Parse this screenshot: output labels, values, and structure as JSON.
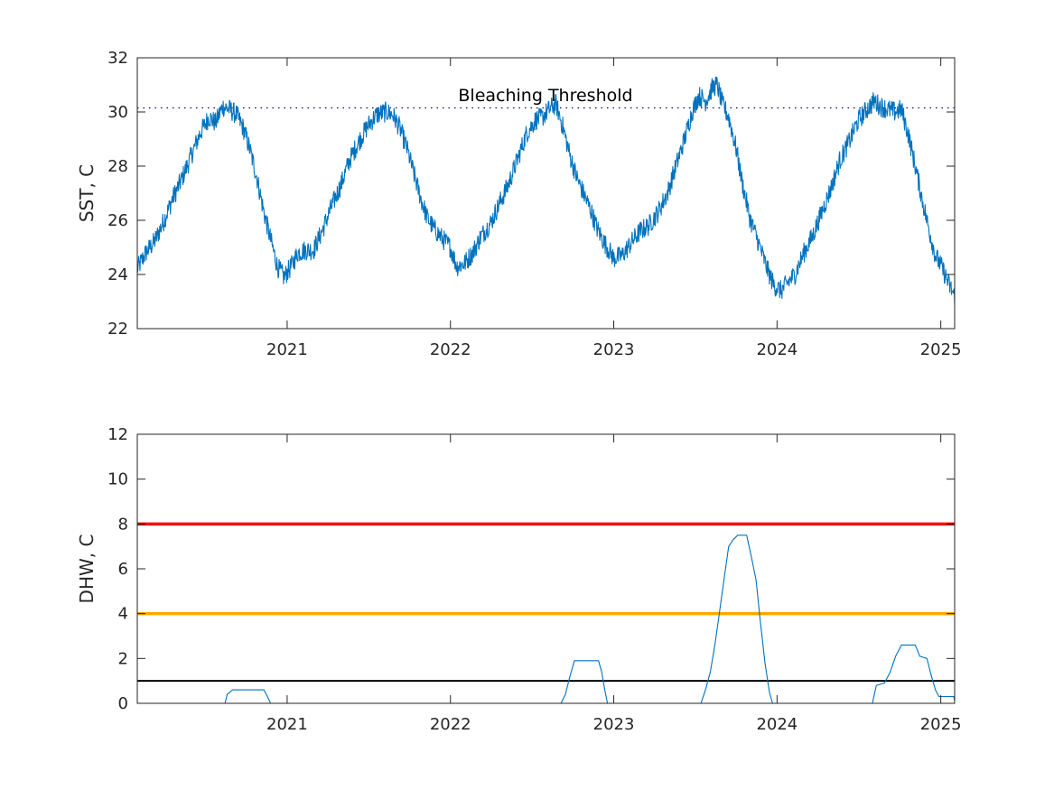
{
  "chart_data": [
    {
      "type": "line",
      "title": "",
      "xlabel": "",
      "ylabel": "SST, C",
      "xlim": [
        "2020-02-01",
        "2025-02-01"
      ],
      "ylim": [
        22,
        32
      ],
      "x_ticks": [
        "2021",
        "2022",
        "2023",
        "2024",
        "2025"
      ],
      "y_ticks": [
        "22",
        "24",
        "26",
        "28",
        "30",
        "32"
      ],
      "grid": false,
      "series": [
        {
          "color": "#0072bd",
          "points": [
            [
              "2020-02-01",
              24.2
            ],
            [
              "2020-02-20",
              24.8
            ],
            [
              "2020-03-10",
              25.2
            ],
            [
              "2020-04-01",
              26.0
            ],
            [
              "2020-04-20",
              26.8
            ],
            [
              "2020-05-10",
              27.5
            ],
            [
              "2020-06-01",
              28.4
            ],
            [
              "2020-06-20",
              29.2
            ],
            [
              "2020-07-10",
              29.8
            ],
            [
              "2020-07-25",
              29.6
            ],
            [
              "2020-08-10",
              30.2
            ],
            [
              "2020-08-25",
              30.1
            ],
            [
              "2020-09-10",
              29.9
            ],
            [
              "2020-09-25",
              29.4
            ],
            [
              "2020-10-10",
              28.6
            ],
            [
              "2020-10-25",
              27.6
            ],
            [
              "2020-11-10",
              26.3
            ],
            [
              "2020-11-25",
              25.3
            ],
            [
              "2020-12-10",
              24.3
            ],
            [
              "2020-12-25",
              23.9
            ],
            [
              "2021-01-10",
              24.3
            ],
            [
              "2021-01-25",
              24.8
            ],
            [
              "2021-02-10",
              24.9
            ],
            [
              "2021-03-01",
              24.9
            ],
            [
              "2021-03-20",
              25.6
            ],
            [
              "2021-04-10",
              26.5
            ],
            [
              "2021-05-01",
              27.3
            ],
            [
              "2021-05-20",
              28.2
            ],
            [
              "2021-06-10",
              28.9
            ],
            [
              "2021-07-01",
              29.5
            ],
            [
              "2021-07-20",
              29.9
            ],
            [
              "2021-08-10",
              30.0
            ],
            [
              "2021-08-25",
              29.9
            ],
            [
              "2021-09-10",
              29.4
            ],
            [
              "2021-09-25",
              28.7
            ],
            [
              "2021-10-10",
              27.8
            ],
            [
              "2021-10-25",
              26.9
            ],
            [
              "2021-11-10",
              26.1
            ],
            [
              "2021-11-25",
              25.7
            ],
            [
              "2021-12-10",
              25.4
            ],
            [
              "2022-01-01",
              25.0
            ],
            [
              "2022-01-15",
              24.3
            ],
            [
              "2022-02-01",
              24.4
            ],
            [
              "2022-02-20",
              24.8
            ],
            [
              "2022-03-10",
              25.4
            ],
            [
              "2022-04-01",
              25.9
            ],
            [
              "2022-04-20",
              26.6
            ],
            [
              "2022-05-10",
              27.3
            ],
            [
              "2022-06-01",
              28.3
            ],
            [
              "2022-06-20",
              29.2
            ],
            [
              "2022-07-10",
              29.7
            ],
            [
              "2022-07-25",
              29.8
            ],
            [
              "2022-08-10",
              30.1
            ],
            [
              "2022-08-25",
              30.3
            ],
            [
              "2022-09-10",
              29.4
            ],
            [
              "2022-09-25",
              28.4
            ],
            [
              "2022-10-10",
              27.6
            ],
            [
              "2022-10-25",
              27.0
            ],
            [
              "2022-11-10",
              26.4
            ],
            [
              "2022-11-25",
              25.7
            ],
            [
              "2022-12-10",
              25.2
            ],
            [
              "2023-01-01",
              24.6
            ],
            [
              "2023-01-20",
              24.7
            ],
            [
              "2023-02-10",
              25.2
            ],
            [
              "2023-03-01",
              25.6
            ],
            [
              "2023-03-20",
              25.8
            ],
            [
              "2023-04-10",
              26.3
            ],
            [
              "2023-05-01",
              27.0
            ],
            [
              "2023-05-20",
              28.0
            ],
            [
              "2023-06-10",
              29.1
            ],
            [
              "2023-06-25",
              30.0
            ],
            [
              "2023-07-10",
              30.6
            ],
            [
              "2023-07-25",
              30.4
            ],
            [
              "2023-08-10",
              30.9
            ],
            [
              "2023-08-20",
              31.0
            ],
            [
              "2023-09-01",
              30.3
            ],
            [
              "2023-09-15",
              29.8
            ],
            [
              "2023-10-01",
              28.7
            ],
            [
              "2023-10-15",
              27.4
            ],
            [
              "2023-11-01",
              26.1
            ],
            [
              "2023-11-20",
              25.2
            ],
            [
              "2023-12-10",
              24.2
            ],
            [
              "2023-12-25",
              23.6
            ],
            [
              "2024-01-10",
              23.4
            ],
            [
              "2024-01-25",
              23.7
            ],
            [
              "2024-02-10",
              24.0
            ],
            [
              "2024-03-01",
              24.8
            ],
            [
              "2024-03-20",
              25.4
            ],
            [
              "2024-04-10",
              26.3
            ],
            [
              "2024-05-01",
              27.2
            ],
            [
              "2024-05-20",
              28.2
            ],
            [
              "2024-06-10",
              28.9
            ],
            [
              "2024-07-01",
              29.7
            ],
            [
              "2024-07-20",
              30.1
            ],
            [
              "2024-08-05",
              30.4
            ],
            [
              "2024-08-20",
              30.2
            ],
            [
              "2024-09-05",
              30.1
            ],
            [
              "2024-09-20",
              30.0
            ],
            [
              "2024-10-05",
              30.1
            ],
            [
              "2024-10-20",
              29.2
            ],
            [
              "2024-11-05",
              28.0
            ],
            [
              "2024-11-20",
              26.8
            ],
            [
              "2024-12-05",
              25.7
            ],
            [
              "2024-12-20",
              24.7
            ],
            [
              "2025-01-05",
              24.2
            ],
            [
              "2025-01-20",
              23.6
            ],
            [
              "2025-02-01",
              23.2
            ]
          ]
        }
      ],
      "reference_lines": [
        {
          "y": 30.15,
          "style": "dotted",
          "color": "#000080",
          "label": "Bleaching Threshold"
        }
      ]
    },
    {
      "type": "line",
      "title": "",
      "xlabel": "",
      "ylabel": "DHW, C",
      "xlim": [
        "2020-02-01",
        "2025-02-01"
      ],
      "ylim": [
        0,
        12
      ],
      "x_ticks": [
        "2021",
        "2022",
        "2023",
        "2024",
        "2025"
      ],
      "y_ticks": [
        "0",
        "2",
        "4",
        "6",
        "8",
        "10",
        "12"
      ],
      "grid": false,
      "series": [
        {
          "color": "#0072bd",
          "points": [
            [
              "2020-02-01",
              0
            ],
            [
              "2020-08-15",
              0
            ],
            [
              "2020-08-20",
              0.4
            ],
            [
              "2020-09-01",
              0.6
            ],
            [
              "2020-10-05",
              0.6
            ],
            [
              "2020-11-10",
              0.6
            ],
            [
              "2020-11-18",
              0.3
            ],
            [
              "2020-11-25",
              0
            ],
            [
              "2022-09-05",
              0
            ],
            [
              "2022-09-15",
              0.4
            ],
            [
              "2022-09-25",
              1.2
            ],
            [
              "2022-10-05",
              1.9
            ],
            [
              "2022-11-01",
              1.9
            ],
            [
              "2022-11-28",
              1.9
            ],
            [
              "2022-12-05",
              1.4
            ],
            [
              "2022-12-12",
              0.6
            ],
            [
              "2022-12-18",
              0
            ],
            [
              "2023-07-15",
              0
            ],
            [
              "2023-07-25",
              0.6
            ],
            [
              "2023-08-05",
              1.4
            ],
            [
              "2023-08-15",
              2.6
            ],
            [
              "2023-08-25",
              4.0
            ],
            [
              "2023-09-05",
              5.6
            ],
            [
              "2023-09-15",
              7.0
            ],
            [
              "2023-09-25",
              7.3
            ],
            [
              "2023-10-05",
              7.5
            ],
            [
              "2023-10-25",
              7.5
            ],
            [
              "2023-11-05",
              6.5
            ],
            [
              "2023-11-15",
              5.5
            ],
            [
              "2023-11-25",
              3.6
            ],
            [
              "2023-12-05",
              1.8
            ],
            [
              "2023-12-15",
              0.5
            ],
            [
              "2023-12-22",
              0
            ],
            [
              "2024-08-01",
              0
            ],
            [
              "2024-08-10",
              0.8
            ],
            [
              "2024-08-28",
              0.9
            ],
            [
              "2024-09-10",
              1.4
            ],
            [
              "2024-09-22",
              2.1
            ],
            [
              "2024-10-05",
              2.6
            ],
            [
              "2024-11-05",
              2.6
            ],
            [
              "2024-11-15",
              2.1
            ],
            [
              "2024-12-01",
              2.0
            ],
            [
              "2024-12-10",
              1.3
            ],
            [
              "2024-12-20",
              0.6
            ],
            [
              "2024-12-28",
              0.3
            ],
            [
              "2025-01-30",
              0.3
            ],
            [
              "2025-02-01",
              0.1
            ]
          ]
        }
      ],
      "reference_lines": [
        {
          "y": 8,
          "color": "#ff0000",
          "width": "thick"
        },
        {
          "y": 4,
          "color": "#ffa500",
          "width": "thick"
        },
        {
          "y": 1,
          "color": "#000000",
          "width": "normal"
        }
      ]
    }
  ]
}
